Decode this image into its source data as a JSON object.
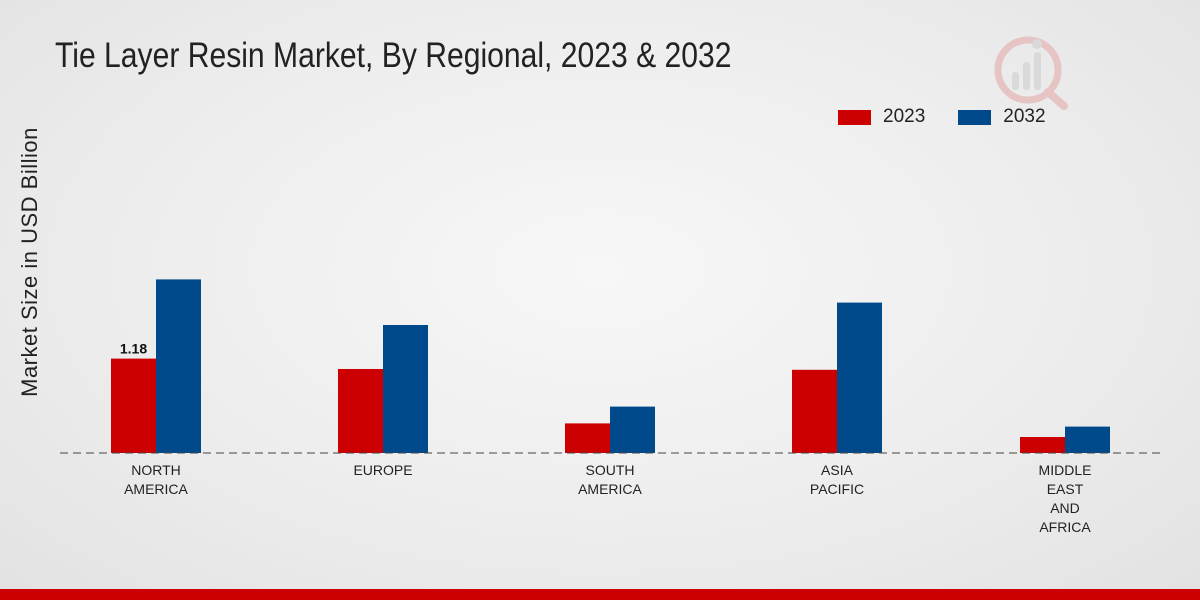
{
  "header": {
    "title": "Tie Layer Resin Market, By Regional, 2023 & 2032"
  },
  "colors": {
    "series_2023": "#cc0000",
    "series_2032": "#004a8c",
    "footer": "#cc0000"
  },
  "chart_data": {
    "type": "bar",
    "title": "Tie Layer Resin Market, By Regional, 2023 & 2032",
    "xlabel": "",
    "ylabel": "Market Size in USD Billion",
    "ylim": [
      0,
      4.5
    ],
    "grid": false,
    "legend_position": "top-right",
    "categories": [
      [
        "NORTH",
        "AMERICA"
      ],
      [
        "EUROPE"
      ],
      [
        "SOUTH",
        "AMERICA"
      ],
      [
        "ASIA",
        "PACIFIC"
      ],
      [
        "MIDDLE",
        "EAST",
        "AND",
        "AFRICA"
      ]
    ],
    "series": [
      {
        "name": "2023",
        "values": [
          1.18,
          1.05,
          0.37,
          1.04,
          0.2
        ]
      },
      {
        "name": "2032",
        "values": [
          2.17,
          1.6,
          0.58,
          1.88,
          0.33
        ]
      }
    ],
    "annotations": [
      {
        "series": 0,
        "category": 0,
        "text": "1.18"
      }
    ]
  }
}
